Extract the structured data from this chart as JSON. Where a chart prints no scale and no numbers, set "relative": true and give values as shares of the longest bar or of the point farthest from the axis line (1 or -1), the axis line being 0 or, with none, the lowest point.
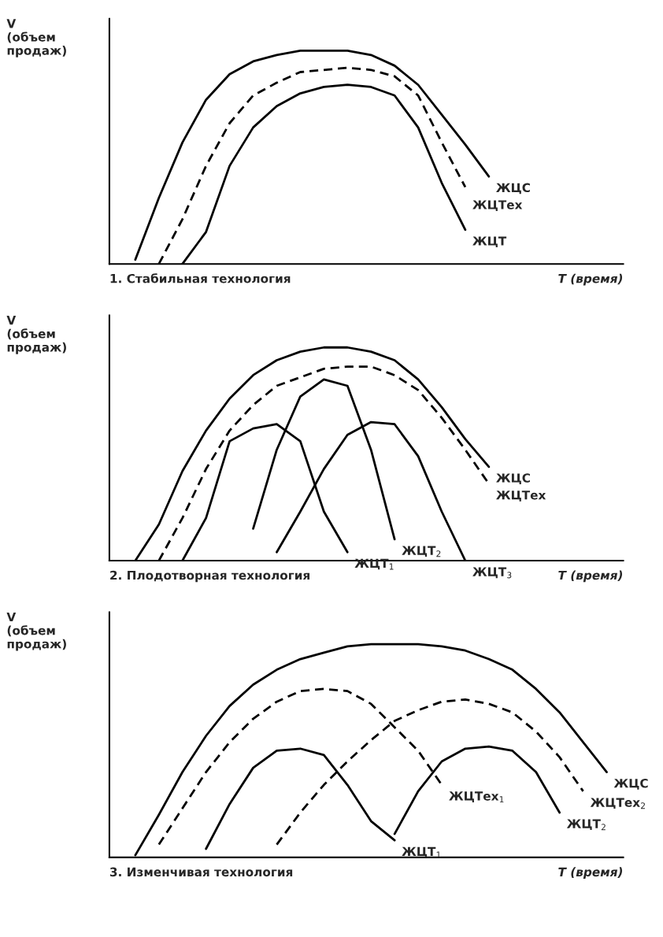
{
  "chart_data": [
    {
      "type": "line",
      "relative": true,
      "title": "1. Стабильная технология",
      "xlabel": "T (время)",
      "ylabel": "V\n(объем\nпродаж)",
      "categories": [
        null,
        null,
        null,
        null,
        null,
        null,
        null,
        null,
        null,
        null,
        null,
        null,
        null,
        null,
        null,
        null,
        null,
        null,
        null,
        null,
        null,
        null
      ],
      "series": [
        {
          "name": "ЖЦС",
          "color": "#000000",
          "line_style": "solid",
          "values": [
            null,
            0.02,
            0.31,
            0.57,
            0.77,
            0.89,
            0.95,
            0.98,
            1.0,
            1.0,
            1.0,
            0.98,
            0.93,
            0.84,
            0.7,
            0.56,
            0.41,
            null,
            null,
            null,
            null,
            null
          ]
        },
        {
          "name": "ЖЦТех",
          "color": "#000000",
          "line_style": "dashed",
          "values": [
            null,
            null,
            0,
            0.21,
            0.46,
            0.66,
            0.79,
            0.85,
            0.9,
            0.91,
            0.92,
            0.91,
            0.88,
            0.79,
            0.57,
            0.36,
            null,
            null,
            null,
            null,
            null,
            null
          ]
        },
        {
          "name": "ЖЦТ",
          "color": "#000000",
          "line_style": "solid",
          "values": [
            null,
            null,
            null,
            0,
            0.15,
            0.46,
            0.64,
            0.74,
            0.8,
            0.83,
            0.84,
            0.83,
            0.79,
            0.64,
            0.38,
            0.16,
            null,
            null,
            null,
            null,
            null,
            null
          ]
        }
      ]
    },
    {
      "type": "line",
      "relative": true,
      "title": "2. Плодотворная технология",
      "xlabel": "T (время)",
      "ylabel": "V\n(объем\nпродаж)",
      "categories": [
        null,
        null,
        null,
        null,
        null,
        null,
        null,
        null,
        null,
        null,
        null,
        null,
        null,
        null,
        null,
        null,
        null,
        null,
        null,
        null,
        null,
        null
      ],
      "series": [
        {
          "name": "ЖЦС",
          "color": "#000000",
          "line_style": "solid",
          "values": [
            null,
            0,
            0.17,
            0.42,
            0.61,
            0.76,
            0.87,
            0.94,
            0.98,
            1.0,
            1.0,
            0.98,
            0.94,
            0.85,
            0.72,
            0.57,
            0.44,
            null,
            null,
            null,
            null,
            null
          ]
        },
        {
          "name": "ЖЦТех",
          "color": "#000000",
          "line_style": "dashed",
          "values": [
            null,
            null,
            0,
            0.2,
            0.43,
            0.61,
            0.73,
            0.82,
            0.86,
            0.9,
            0.91,
            0.91,
            0.87,
            0.8,
            0.67,
            0.52,
            0.36,
            null,
            null,
            null,
            null,
            null
          ]
        },
        {
          "name": "ЖЦТ$_{1}$",
          "color": "#000000",
          "line_style": "solid",
          "values": [
            null,
            null,
            null,
            0,
            0.2,
            0.56,
            0.62,
            0.64,
            0.56,
            0.23,
            0.04,
            null,
            null,
            null,
            null,
            null,
            null,
            null,
            null,
            null,
            null,
            null
          ]
        },
        {
          "name": "ЖЦТ$_{2}$",
          "color": "#000000",
          "line_style": "solid",
          "values": [
            null,
            null,
            null,
            null,
            null,
            null,
            0.15,
            0.52,
            0.77,
            0.85,
            0.82,
            0.52,
            0.1,
            null,
            null,
            null,
            null,
            null,
            null,
            null,
            null,
            null
          ]
        },
        {
          "name": "ЖЦТ$_{3}$",
          "color": "#000000",
          "line_style": "solid",
          "values": [
            null,
            null,
            null,
            null,
            null,
            null,
            null,
            0.04,
            0.23,
            0.43,
            0.59,
            0.65,
            0.64,
            0.49,
            0.23,
            0,
            null,
            null,
            null,
            null,
            null,
            null
          ]
        }
      ]
    },
    {
      "type": "line",
      "relative": true,
      "title": "3. Изменчивая технология",
      "xlabel": "T (время)",
      "ylabel": "V\n(объем\nпродаж)",
      "categories": [
        null,
        null,
        null,
        null,
        null,
        null,
        null,
        null,
        null,
        null,
        null,
        null,
        null,
        null,
        null,
        null,
        null,
        null,
        null,
        null,
        null,
        null
      ],
      "series": [
        {
          "name": "ЖЦС",
          "color": "#000000",
          "line_style": "solid",
          "values": [
            null,
            0.01,
            0.2,
            0.4,
            0.57,
            0.71,
            0.81,
            0.88,
            0.93,
            0.96,
            0.99,
            1.0,
            1.0,
            1.0,
            0.99,
            0.97,
            0.93,
            0.88,
            0.79,
            0.68,
            0.54,
            0.4
          ]
        },
        {
          "name": "ЖЦТех$_{1}$",
          "color": "#000000",
          "line_style": "dashed",
          "values": [
            null,
            null,
            0.06,
            0.23,
            0.4,
            0.54,
            0.65,
            0.73,
            0.78,
            0.79,
            0.78,
            0.72,
            0.61,
            0.5,
            0.34,
            null,
            null,
            null,
            null,
            null,
            null,
            null
          ]
        },
        {
          "name": "ЖЦТех$_{2}$",
          "color": "#000000",
          "line_style": "dashed",
          "values": [
            null,
            null,
            null,
            null,
            null,
            null,
            null,
            0.06,
            0.21,
            0.34,
            0.45,
            0.55,
            0.64,
            0.69,
            0.73,
            0.74,
            0.72,
            0.68,
            0.59,
            0.47,
            0.31,
            null
          ]
        },
        {
          "name": "ЖЦТ$_{1}$",
          "color": "#000000",
          "line_style": "solid",
          "values": [
            null,
            null,
            null,
            null,
            0.04,
            0.25,
            0.42,
            0.5,
            0.51,
            0.48,
            0.34,
            0.17,
            0.08,
            null,
            null,
            null,
            null,
            null,
            null,
            null,
            null,
            null
          ]
        },
        {
          "name": "ЖЦТ$_{2}$",
          "color": "#000000",
          "line_style": "solid",
          "values": [
            null,
            null,
            null,
            null,
            null,
            null,
            null,
            null,
            null,
            null,
            null,
            null,
            0.11,
            0.31,
            0.45,
            0.51,
            0.52,
            0.5,
            0.4,
            0.21,
            null,
            null
          ]
        }
      ]
    }
  ]
}
